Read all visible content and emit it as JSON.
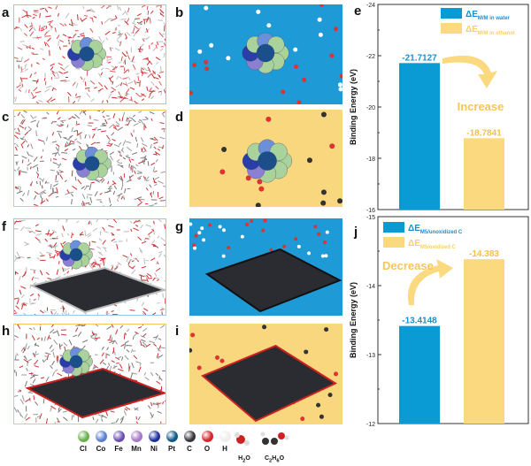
{
  "panel_labels": [
    "a",
    "b",
    "c",
    "d",
    "e",
    "f",
    "g",
    "h",
    "i",
    "j"
  ],
  "panel_backgrounds": {
    "a": "#ffffff",
    "b": "#1e9ad6",
    "c": "#ffffff",
    "d": "#f8d77e",
    "f": "#ffffff",
    "g": "#1e9ad6",
    "h": "#ffffff",
    "i": "#f8d77e"
  },
  "atom_legend": [
    {
      "label": "Cl",
      "color": "#6ab04c"
    },
    {
      "label": "Co",
      "color": "#5b7fd0"
    },
    {
      "label": "Fe",
      "color": "#6a4fb0"
    },
    {
      "label": "Mn",
      "color": "#a678c8"
    },
    {
      "label": "Ni",
      "color": "#1f2f9e"
    },
    {
      "label": "Pt",
      "color": "#0f5a86"
    },
    {
      "label": "C",
      "color": "#35363c"
    },
    {
      "label": "O",
      "color": "#d8242a"
    },
    {
      "label": "H",
      "color": "#eeeeee"
    }
  ],
  "molecule_legend": [
    "H2O",
    "C2H6O"
  ],
  "chart_data": [
    {
      "panel": "e",
      "type": "bar",
      "ylabel": "Binding Energy (eV)",
      "ylim": [
        -16,
        -24
      ],
      "yticks": [
        "-24",
        "-22",
        "-20",
        "-18",
        "-16"
      ],
      "series": [
        {
          "name": "ΔE M/M in water",
          "value": -21.7127,
          "label": "-21.7127",
          "color": "#0a9bd5"
        },
        {
          "name": "ΔE M/M in ethanol",
          "value": -18.7841,
          "label": "-18.7841",
          "color": "#fbd97e"
        }
      ],
      "legend_main": "ΔE",
      "legend_subs": [
        "M/M in water",
        "M/M in ethanol"
      ],
      "annotation": "Increase",
      "legend_position": "top-right"
    },
    {
      "panel": "j",
      "type": "bar",
      "ylabel": "Binding Energy (eV)",
      "ylim": [
        -12,
        -15
      ],
      "yticks": [
        "-15",
        "-14",
        "-13",
        "-12"
      ],
      "series": [
        {
          "name": "ΔE M5/unoxidized C",
          "value": -13.4148,
          "label": "-13.4148",
          "color": "#0a9bd5"
        },
        {
          "name": "ΔE M5/oxidized C",
          "value": -14.383,
          "label": "-14.383",
          "color": "#fbd97e"
        }
      ],
      "legend_main": "ΔE",
      "legend_subs": [
        "M5/unoxidized C",
        "M5/oxidized C"
      ],
      "annotation": "Decrease",
      "legend_position": "top-left"
    }
  ]
}
